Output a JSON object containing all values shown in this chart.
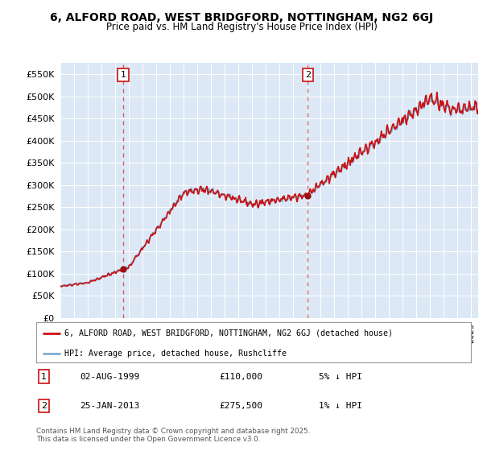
{
  "title": "6, ALFORD ROAD, WEST BRIDGFORD, NOTTINGHAM, NG2 6GJ",
  "subtitle": "Price paid vs. HM Land Registry's House Price Index (HPI)",
  "legend_line1": "6, ALFORD ROAD, WEST BRIDGFORD, NOTTINGHAM, NG2 6GJ (detached house)",
  "legend_line2": "HPI: Average price, detached house, Rushcliffe",
  "annotation1_label": "1",
  "annotation1_date": "02-AUG-1999",
  "annotation1_price": "£110,000",
  "annotation1_hpi": "5% ↓ HPI",
  "annotation2_label": "2",
  "annotation2_date": "25-JAN-2013",
  "annotation2_price": "£275,500",
  "annotation2_hpi": "1% ↓ HPI",
  "footer": "Contains HM Land Registry data © Crown copyright and database right 2025.\nThis data is licensed under the Open Government Licence v3.0.",
  "sale1_x": 1999.583,
  "sale1_y": 110000,
  "sale2_x": 2013.07,
  "sale2_y": 275500,
  "hpi_color": "#7aadd4",
  "price_color": "#cc1111",
  "sale_dot_color": "#991111",
  "vline_color": "#cc1111",
  "annotation_box_color": "#cc1111",
  "background_color": "#dce8f5",
  "ylim": [
    0,
    575000
  ],
  "xlim_start": 1995.0,
  "xlim_end": 2025.5,
  "ytick_step": 50000,
  "noise_seed": 10
}
